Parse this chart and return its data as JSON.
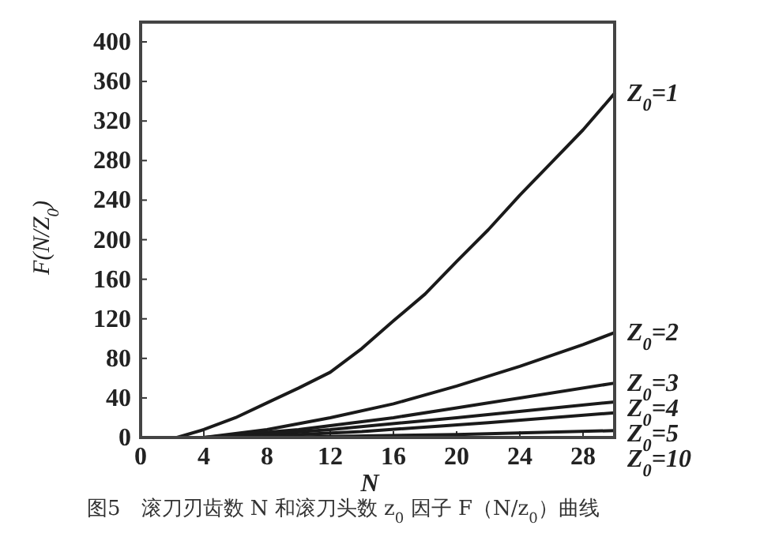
{
  "chart_data": {
    "type": "line",
    "xlabel": "N",
    "ylabel": "F(N/Z$_{0}$)",
    "xlim": [
      0,
      30
    ],
    "ylim": [
      0,
      420
    ],
    "xticks": [
      0,
      4,
      8,
      12,
      16,
      20,
      24,
      28
    ],
    "yticks": [
      0,
      40,
      80,
      120,
      160,
      200,
      240,
      280,
      320,
      360,
      400
    ],
    "grid": false,
    "marker": "none",
    "line_style": "solid",
    "series": [
      {
        "name": "Z$_{0}$=1",
        "color": "#1a1a1a",
        "x": [
          2.3,
          4,
          6,
          8,
          10,
          12,
          14,
          16,
          18,
          20,
          22,
          24,
          26,
          28,
          30
        ],
        "values": [
          0,
          8,
          20,
          35,
          50,
          66,
          90,
          118,
          145,
          178,
          210,
          245,
          278,
          311,
          348
        ]
      },
      {
        "name": "Z$_{0}$=2",
        "color": "#1a1a1a",
        "x": [
          4,
          8,
          12,
          16,
          20,
          24,
          28,
          30
        ],
        "values": [
          0,
          8,
          20,
          34,
          52,
          72,
          94,
          106
        ]
      },
      {
        "name": "Z$_{0}$=3",
        "color": "#1a1a1a",
        "x": [
          4,
          10,
          16,
          20,
          24,
          30
        ],
        "values": [
          0,
          8,
          20,
          30,
          40,
          55
        ]
      },
      {
        "name": "Z$_{0}$=4",
        "color": "#1a1a1a",
        "x": [
          5,
          12,
          20,
          30
        ],
        "values": [
          0,
          8,
          20,
          36
        ]
      },
      {
        "name": "Z$_{0}$=5",
        "color": "#1a1a1a",
        "x": [
          6,
          14,
          22,
          30
        ],
        "values": [
          0,
          6,
          15,
          25
        ]
      },
      {
        "name": "Z$_{0}$=10",
        "color": "#1a1a1a",
        "x": [
          8,
          20,
          30
        ],
        "values": [
          0,
          3,
          7
        ]
      }
    ],
    "annotations": [
      "图5　滚刀刃齿数 N 和滚刀头数 z$_{0}$ 因子 F（N/z$_{0}$）曲线"
    ]
  }
}
